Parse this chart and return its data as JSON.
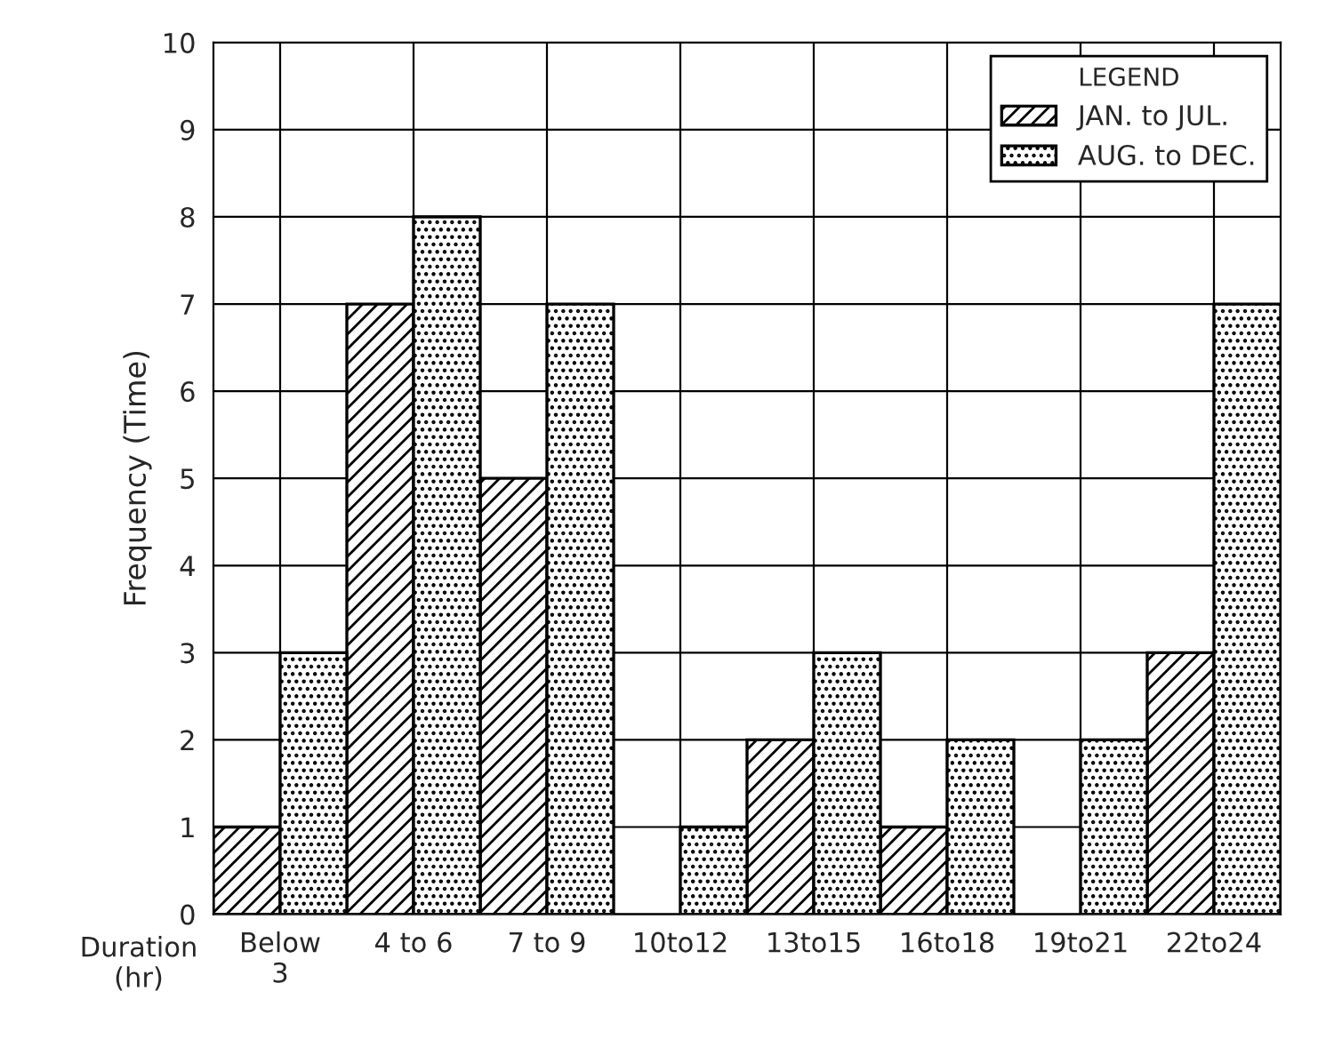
{
  "chart_data": {
    "type": "bar",
    "xlabel": "Duration\n(hr)",
    "ylabel": "Frequency (Time)",
    "legend_title": "LEGEND",
    "categories": [
      "Below\n3",
      "4 to 6",
      "7 to 9",
      "10to12",
      "13to15",
      "16to18",
      "19to21",
      "22to24"
    ],
    "series": [
      {
        "name": "JAN. to JUL.",
        "color": "#000000",
        "values": [
          1,
          7,
          5,
          null,
          2,
          1,
          null,
          3
        ]
      },
      {
        "name": "AUG. to DEC.",
        "color": "#000000",
        "values": [
          3,
          8,
          7,
          1,
          3,
          2,
          2,
          7
        ]
      }
    ],
    "ylim": [
      0,
      10
    ],
    "yticks": [
      0,
      1,
      2,
      3,
      4,
      5,
      6,
      7,
      8,
      9,
      10
    ],
    "grid": true,
    "legend": "top right"
  }
}
